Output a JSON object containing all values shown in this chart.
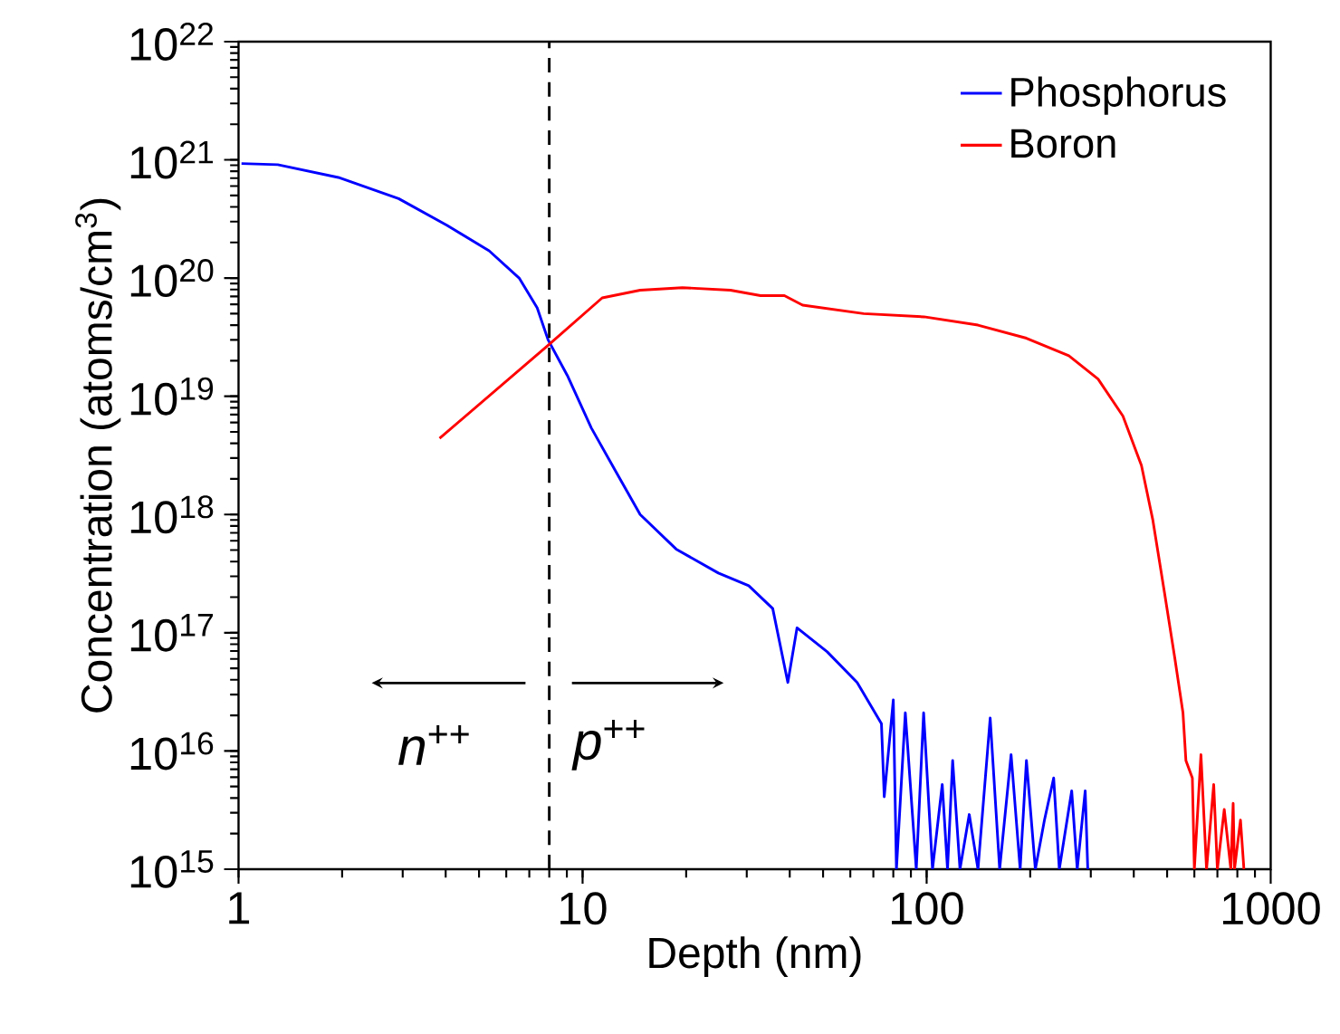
{
  "chart_data": {
    "type": "line",
    "xlabel": "Depth (nm)",
    "ylabel": "Concentration (atoms/cm$^{3}$)",
    "log": "xy",
    "xlim": [
      1,
      1000
    ],
    "ylim": [
      1000000000000000.0,
      1e+22
    ],
    "xticks": [
      1,
      10,
      100,
      1000
    ],
    "yticks": [
      {
        "value": 1000000000000000.0,
        "label": "10$^{15}$"
      },
      {
        "value": 1e+16,
        "label": "10$^{16}$"
      },
      {
        "value": 1e+17,
        "label": "10$^{17}$"
      },
      {
        "value": 1e+18,
        "label": "10$^{18}$"
      },
      {
        "value": 1e+19,
        "label": "10$^{19}$"
      },
      {
        "value": 1e+20,
        "label": "10$^{20}$"
      },
      {
        "value": 1e+21,
        "label": "10$^{21}$"
      },
      {
        "value": 1e+22,
        "label": "10$^{22}$"
      }
    ],
    "grid": false,
    "legend": "top right",
    "marker": "none",
    "line_style": "solid",
    "series": [
      {
        "name": "Phosphorus",
        "color": "#0000ff",
        "x": [
          1.02,
          1.3,
          1.95,
          2.92,
          4.03,
          5.35,
          6.54,
          7.38,
          7.94,
          9.03,
          10.6,
          12.5,
          14.7,
          18.7,
          24.8,
          30.4,
          35.7,
          39.5,
          42,
          51.4,
          62.8,
          73.9,
          75.3,
          80,
          81.7,
          86.7,
          93.3,
          98,
          104,
          111,
          115,
          119,
          125,
          133,
          141,
          153,
          163,
          176,
          187,
          195,
          207,
          220,
          234,
          243,
          264,
          274,
          289,
          294
        ],
        "values": [
          9.3e+20,
          9.1e+20,
          7.1e+20,
          4.7e+20,
          2.8e+20,
          1.7e+20,
          1e+20,
          5.6e+19,
          3e+19,
          1.5e+19,
          5.4e+18,
          2.3e+18,
          1e+18,
          5.1e+17,
          3.2e+17,
          2.5e+17,
          1.6e+17,
          3.8e+16,
          1.1e+17,
          6.9e+16,
          3.8e+16,
          1.7e+16,
          4100000000000000.0,
          2.7e+16,
          1000000000000000.0,
          2.1e+16,
          1000000000000000.0,
          2.1e+16,
          1000000000000000.0,
          5200000000000000.0,
          1000000000000000.0,
          8300000000000000.0,
          1000000000000000.0,
          2900000000000000.0,
          1000000000000000.0,
          1.9e+16,
          1000000000000000.0,
          9300000000000000.0,
          1000000000000000.0,
          8300000000000000.0,
          1000000000000000.0,
          2600000000000000.0,
          5900000000000000.0,
          1000000000000000.0,
          4600000000000000.0,
          1000000000000000.0,
          4600000000000000.0,
          1000000000000000.0
        ]
      },
      {
        "name": "Boron",
        "color": "#ff0000",
        "x": [
          3.84,
          7.94,
          11.4,
          14.7,
          19.5,
          26.9,
          32.9,
          38.6,
          43.6,
          65.6,
          98.3,
          141,
          195,
          259,
          315,
          372,
          421,
          454,
          491,
          526,
          556,
          567,
          592,
          600,
          627,
          651,
          683,
          700,
          733,
          766,
          778,
          785,
          817,
          836
        ],
        "values": [
          4.4e+18,
          2.7e+19,
          6.8e+19,
          7.9e+19,
          8.3e+19,
          7.9e+19,
          7.1e+19,
          7.1e+19,
          5.9e+19,
          5e+19,
          4.7e+19,
          4e+19,
          3.1e+19,
          2.2e+19,
          1.4e+19,
          6.8e+18,
          2.6e+18,
          9.1e+17,
          2.2e+17,
          6.2e+16,
          2.1e+16,
          8300000000000000.0,
          5900000000000000.0,
          1000000000000000.0,
          9300000000000000.0,
          1000000000000000.0,
          5200000000000000.0,
          1000000000000000.0,
          3200000000000000.0,
          1000000000000000.0,
          3600000000000000.0,
          1000000000000000.0,
          2600000000000000.0,
          1000000000000000.0
        ]
      }
    ],
    "ref_lines": [
      {
        "axis": "x",
        "value": 8,
        "color": "#000000",
        "line_style": "dashed"
      }
    ],
    "annotations": [
      "*n*$^{++}$",
      "*p*$^{++}$"
    ]
  }
}
